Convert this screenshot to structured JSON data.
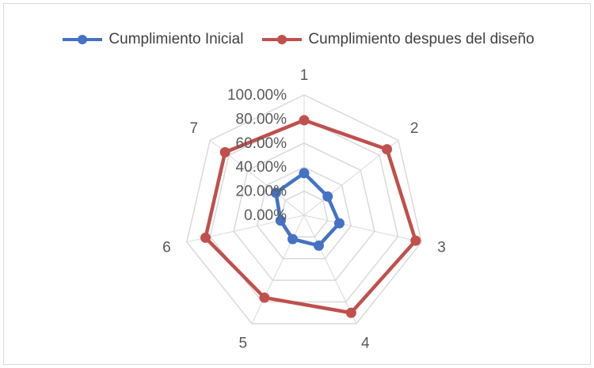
{
  "chart_data": {
    "type": "radar",
    "categories": [
      "1",
      "2",
      "3",
      "4",
      "5",
      "6",
      "7"
    ],
    "radial_ticks": [
      "0.00%",
      "20.00%",
      "40.00%",
      "60.00%",
      "80.00%",
      "100.00%"
    ],
    "rlim": [
      0,
      100
    ],
    "grid": true,
    "legend": "top",
    "series": [
      {
        "name": "Cumplimiento Inicial",
        "color": "#4472C4",
        "values": [
          35,
          25,
          30,
          28,
          22,
          20,
          30
        ]
      },
      {
        "name": "Cumplimiento despues del diseño",
        "color": "#C0504D",
        "values": [
          79,
          88,
          95,
          90,
          76,
          84,
          84
        ]
      }
    ]
  }
}
